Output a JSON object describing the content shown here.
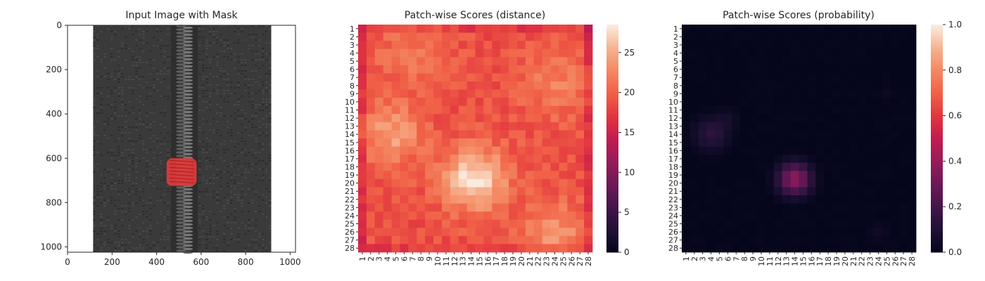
{
  "chart_data": [
    {
      "type": "image",
      "title": "Input Image with Mask",
      "xlim": [
        0,
        1024
      ],
      "ylim": [
        1024,
        0
      ],
      "xticks": [
        "0",
        "200",
        "400",
        "600",
        "800",
        "1000"
      ],
      "yticks": [
        "0",
        "200",
        "400",
        "600",
        "800",
        "1000"
      ],
      "image": {
        "content": "black zipper on white background, vertical",
        "fabric_x_range": [
          115,
          915
        ],
        "teeth_x_range": [
          465,
          585
        ],
        "fabric_color": "#3a3a3a",
        "teeth_color": "#5e5e5e"
      },
      "mask": {
        "x_range": [
          445,
          580
        ],
        "y_range": [
          600,
          725
        ],
        "color": "#e33b3b"
      }
    },
    {
      "type": "heatmap",
      "title": "Patch-wise Scores (distance)",
      "rows": 28,
      "cols": 28,
      "xticks": [
        "1",
        "2",
        "3",
        "4",
        "5",
        "6",
        "7",
        "8",
        "9",
        "10",
        "11",
        "12",
        "13",
        "14",
        "15",
        "16",
        "17",
        "18",
        "19",
        "20",
        "21",
        "22",
        "23",
        "24",
        "25",
        "26",
        "27",
        "28"
      ],
      "yticks": [
        "1",
        "2",
        "3",
        "4",
        "5",
        "6",
        "7",
        "8",
        "9",
        "10",
        "11",
        "12",
        "13",
        "14",
        "15",
        "16",
        "17",
        "18",
        "19",
        "20",
        "21",
        "22",
        "23",
        "24",
        "25",
        "26",
        "27",
        "28"
      ],
      "colorbar": {
        "min": 0,
        "max": 28.5,
        "ticks": [
          "0",
          "5",
          "10",
          "15",
          "20",
          "25"
        ],
        "colormap": "rocket"
      },
      "base_value": 19.0,
      "hotspots": [
        {
          "row": 19.5,
          "col": 14.5,
          "peak": 28.5,
          "radius": 2.6
        },
        {
          "row": 14.0,
          "col": 4.5,
          "peak": 24.5,
          "radius": 2.6
        },
        {
          "row": 26.0,
          "col": 24.0,
          "peak": 23.5,
          "radius": 2.6
        },
        {
          "row": 8.0,
          "col": 24.0,
          "peak": 22.0,
          "radius": 3.0
        },
        {
          "row": 4.0,
          "col": 6.5,
          "peak": 21.5,
          "radius": 3.0
        }
      ]
    },
    {
      "type": "heatmap",
      "title": "Patch-wise Scores (probability)",
      "rows": 28,
      "cols": 28,
      "xticks": [
        "1",
        "2",
        "3",
        "4",
        "5",
        "6",
        "7",
        "8",
        "9",
        "10",
        "11",
        "12",
        "13",
        "14",
        "15",
        "16",
        "17",
        "18",
        "19",
        "20",
        "21",
        "22",
        "23",
        "24",
        "25",
        "26",
        "27",
        "28"
      ],
      "yticks": [
        "1",
        "2",
        "3",
        "4",
        "5",
        "6",
        "7",
        "8",
        "9",
        "10",
        "11",
        "12",
        "13",
        "14",
        "15",
        "16",
        "17",
        "18",
        "19",
        "20",
        "21",
        "22",
        "23",
        "24",
        "25",
        "26",
        "27",
        "28"
      ],
      "colorbar": {
        "min": 0.0,
        "max": 1.0,
        "ticks": [
          "0.0",
          "0.2",
          "0.4",
          "0.6",
          "0.8",
          "1.0"
        ],
        "colormap": "rocket"
      },
      "base_value": 0.0,
      "hotspots": [
        {
          "row": 19.5,
          "col": 14.0,
          "peak": 0.38,
          "radius": 1.4
        },
        {
          "row": 14.0,
          "col": 4.0,
          "peak": 0.14,
          "radius": 1.5
        },
        {
          "row": 12.0,
          "col": 6.0,
          "peak": 0.05,
          "radius": 1.0
        },
        {
          "row": 26.0,
          "col": 24.0,
          "peak": 0.05,
          "radius": 1.0
        },
        {
          "row": 9.0,
          "col": 25.0,
          "peak": 0.04,
          "radius": 0.8
        }
      ]
    }
  ]
}
